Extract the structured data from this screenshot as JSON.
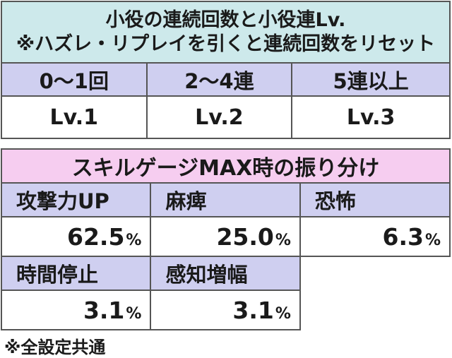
{
  "section1": {
    "title_line1": "小役の連続回数と小役連Lv.",
    "title_line2": "※ハズレ・リプレイを引くと連続回数をリセット",
    "columns": [
      "0〜1回",
      "2〜4連",
      "5連以上"
    ],
    "levels": [
      "Lv.1",
      "Lv.2",
      "Lv.3"
    ]
  },
  "section2": {
    "title": "スキルゲージMAX時の振り分け",
    "items": [
      {
        "label": "攻撃力UP",
        "value": "62.5",
        "unit": "%"
      },
      {
        "label": "麻痺",
        "value": "25.0",
        "unit": "%"
      },
      {
        "label": "恐怖",
        "value": "6.3",
        "unit": "%"
      },
      {
        "label": "時間停止",
        "value": "3.1",
        "unit": "%"
      },
      {
        "label": "感知増幅",
        "value": "3.1",
        "unit": "%"
      }
    ]
  },
  "footnote": "※全設定共通"
}
